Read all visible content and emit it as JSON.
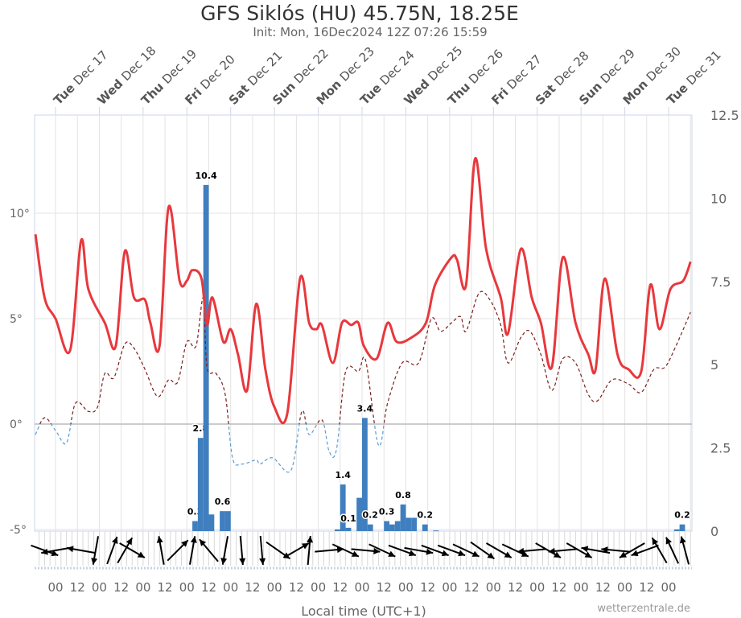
{
  "chart_data": {
    "type": "line",
    "title": "GFS Siklós (HU) 45.75N, 18.25E",
    "subtitle": "Init: Mon, 16Dec2024 12Z 07:26 15:59",
    "xlabel": "Local time (UTC+1)",
    "credit": "wetterzentrale.de",
    "year": 2024,
    "month": 12,
    "day_labels": [
      {
        "weekday": "Tue",
        "date": "Dec 17",
        "day": 17
      },
      {
        "weekday": "Wed",
        "date": "Dec 18",
        "day": 18
      },
      {
        "weekday": "Thu",
        "date": "Dec 19",
        "day": 19
      },
      {
        "weekday": "Fri",
        "date": "Dec 20",
        "day": 20
      },
      {
        "weekday": "Sat",
        "date": "Dec 21",
        "day": 21
      },
      {
        "weekday": "Sun",
        "date": "Dec 22",
        "day": 22
      },
      {
        "weekday": "Mon",
        "date": "Dec 23",
        "day": 23
      },
      {
        "weekday": "Tue",
        "date": "Dec 24",
        "day": 24
      },
      {
        "weekday": "Wed",
        "date": "Dec 25",
        "day": 25
      },
      {
        "weekday": "Thu",
        "date": "Dec 26",
        "day": 26
      },
      {
        "weekday": "Fri",
        "date": "Dec 27",
        "day": 27
      },
      {
        "weekday": "Sat",
        "date": "Dec 28",
        "day": 28
      },
      {
        "weekday": "Sun",
        "date": "Dec 29",
        "day": 29
      },
      {
        "weekday": "Mon",
        "date": "Dec 30",
        "day": 30
      },
      {
        "weekday": "Tue",
        "date": "Dec 31",
        "day": 31
      }
    ],
    "hour_tick_labels": [
      "00",
      "12"
    ],
    "left_axis": {
      "unit": "°",
      "ticks": [
        -5,
        0,
        5,
        10
      ],
      "tick_labels": [
        "-5°",
        "0°",
        "5°",
        "10°"
      ],
      "range": [
        -5,
        14.7
      ]
    },
    "right_axis": {
      "ticks": [
        0,
        2.5,
        5,
        7.5,
        10,
        12.5
      ],
      "tick_labels": [
        "0",
        "2.5",
        "5",
        "7.5",
        "10",
        "12.5"
      ],
      "range": [
        0,
        12.5
      ]
    },
    "x_range": [
      "16 13",
      "31 13"
    ],
    "colors": {
      "temperature": "#e8383d",
      "dewpoint_above_zero": "#7a1f1f",
      "dewpoint_below_zero": "#5b9bd5",
      "precipitation": "#3f7fbf",
      "wind": "#000000",
      "grid": "#e3e3e3",
      "zero_line": "#bbbbbb"
    },
    "temperature": [
      [
        "16 13",
        9.0
      ],
      [
        "16 18",
        6.0
      ],
      [
        "17 00",
        5.0
      ],
      [
        "17 08",
        3.5
      ],
      [
        "17 14",
        8.7
      ],
      [
        "17 18",
        6.4
      ],
      [
        "18 03",
        4.8
      ],
      [
        "18 09",
        3.7
      ],
      [
        "18 14",
        8.2
      ],
      [
        "18 19",
        6.0
      ],
      [
        "19 01",
        5.9
      ],
      [
        "19 04",
        4.8
      ],
      [
        "19 09",
        3.7
      ],
      [
        "19 14",
        10.3
      ],
      [
        "19 20",
        6.8
      ],
      [
        "20 00",
        6.8
      ],
      [
        "20 03",
        7.3
      ],
      [
        "20 08",
        6.9
      ],
      [
        "20 11",
        4.7
      ],
      [
        "20 14",
        6.0
      ],
      [
        "20 20",
        3.9
      ],
      [
        "21 00",
        4.5
      ],
      [
        "21 04",
        3.3
      ],
      [
        "21 09",
        1.6
      ],
      [
        "21 14",
        5.7
      ],
      [
        "21 19",
        2.6
      ],
      [
        "22 00",
        0.8
      ],
      [
        "22 07",
        0.5
      ],
      [
        "22 14",
        6.9
      ],
      [
        "22 19",
        4.8
      ],
      [
        "22 23",
        4.5
      ],
      [
        "23 02",
        4.7
      ],
      [
        "23 08",
        2.9
      ],
      [
        "23 13",
        4.8
      ],
      [
        "23 18",
        4.7
      ],
      [
        "23 22",
        4.8
      ],
      [
        "24 01",
        3.7
      ],
      [
        "24 08",
        3.1
      ],
      [
        "24 14",
        4.8
      ],
      [
        "24 19",
        3.9
      ],
      [
        "25 03",
        4.1
      ],
      [
        "25 11",
        4.8
      ],
      [
        "25 16",
        6.6
      ],
      [
        "26 01",
        7.9
      ],
      [
        "26 04",
        7.8
      ],
      [
        "26 09",
        6.6
      ],
      [
        "26 14",
        12.6
      ],
      [
        "26 20",
        8.3
      ],
      [
        "27 04",
        6.0
      ],
      [
        "27 08",
        4.3
      ],
      [
        "27 15",
        8.3
      ],
      [
        "27 21",
        6.0
      ],
      [
        "28 02",
        4.8
      ],
      [
        "28 08",
        2.7
      ],
      [
        "28 14",
        7.9
      ],
      [
        "28 21",
        4.8
      ],
      [
        "29 04",
        3.3
      ],
      [
        "29 08",
        2.6
      ],
      [
        "29 13",
        6.9
      ],
      [
        "29 20",
        3.3
      ],
      [
        "30 02",
        2.6
      ],
      [
        "30 09",
        2.5
      ],
      [
        "30 14",
        6.6
      ],
      [
        "30 19",
        4.5
      ],
      [
        "31 01",
        6.4
      ],
      [
        "31 08",
        6.8
      ],
      [
        "31 12",
        7.7
      ]
    ],
    "dewpoint": [
      [
        "16 13",
        -0.5
      ],
      [
        "16 18",
        0.3
      ],
      [
        "17 00",
        -0.3
      ],
      [
        "17 06",
        -0.9
      ],
      [
        "17 11",
        1.0
      ],
      [
        "17 18",
        0.6
      ],
      [
        "17 23",
        0.8
      ],
      [
        "18 03",
        2.4
      ],
      [
        "18 08",
        2.2
      ],
      [
        "18 14",
        3.8
      ],
      [
        "18 19",
        3.6
      ],
      [
        "19 01",
        2.6
      ],
      [
        "19 08",
        1.3
      ],
      [
        "19 14",
        2.1
      ],
      [
        "19 19",
        2.0
      ],
      [
        "20 00",
        3.9
      ],
      [
        "20 05",
        3.7
      ],
      [
        "20 09",
        6.0
      ],
      [
        "20 11",
        2.7
      ],
      [
        "20 16",
        2.4
      ],
      [
        "20 21",
        1.4
      ],
      [
        "21 01",
        -1.6
      ],
      [
        "21 06",
        -1.9
      ],
      [
        "21 14",
        -1.7
      ],
      [
        "21 16",
        -1.9
      ],
      [
        "21 23",
        -1.6
      ],
      [
        "22 09",
        -2.2
      ],
      [
        "22 15",
        0.6
      ],
      [
        "22 19",
        -0.5
      ],
      [
        "23 02",
        0.2
      ],
      [
        "23 06",
        -1.3
      ],
      [
        "23 10",
        -1.2
      ],
      [
        "23 15",
        2.5
      ],
      [
        "23 22",
        2.5
      ],
      [
        "24 02",
        3.0
      ],
      [
        "24 09",
        -1.0
      ],
      [
        "24 14",
        1.0
      ],
      [
        "24 22",
        2.9
      ],
      [
        "25 07",
        2.9
      ],
      [
        "25 14",
        5.0
      ],
      [
        "25 19",
        4.4
      ],
      [
        "26 01",
        4.8
      ],
      [
        "26 06",
        5.1
      ],
      [
        "26 09",
        4.4
      ],
      [
        "26 16",
        6.2
      ],
      [
        "26 22",
        5.9
      ],
      [
        "27 04",
        4.7
      ],
      [
        "27 08",
        2.9
      ],
      [
        "27 15",
        4.1
      ],
      [
        "27 20",
        4.4
      ],
      [
        "28 02",
        3.3
      ],
      [
        "28 08",
        1.6
      ],
      [
        "28 14",
        3.1
      ],
      [
        "28 21",
        2.9
      ],
      [
        "29 04",
        1.4
      ],
      [
        "29 09",
        1.1
      ],
      [
        "29 17",
        2.1
      ],
      [
        "30 02",
        1.9
      ],
      [
        "30 09",
        1.5
      ],
      [
        "30 16",
        2.6
      ],
      [
        "30 22",
        2.7
      ],
      [
        "31 04",
        3.7
      ],
      [
        "31 12",
        5.3
      ]
    ],
    "precipitation": [
      {
        "t": "20 03",
        "v": 0.3,
        "label": "0.3"
      },
      {
        "t": "20 06",
        "v": 2.8,
        "label": "2.8"
      },
      {
        "t": "20 09",
        "v": 10.4,
        "label": "10.4"
      },
      {
        "t": "20 12",
        "v": 0.5
      },
      {
        "t": "20 18",
        "v": 0.6,
        "label": "0.6"
      },
      {
        "t": "20 21",
        "v": 0.6
      },
      {
        "t": "23 09",
        "v": 0.05
      },
      {
        "t": "23 12",
        "v": 1.4,
        "label": "1.4"
      },
      {
        "t": "23 15",
        "v": 0.1,
        "label": "0.1"
      },
      {
        "t": "23 21",
        "v": 1.0
      },
      {
        "t": "24 00",
        "v": 3.4,
        "label": "3.4"
      },
      {
        "t": "24 03",
        "v": 0.2,
        "label": "0.2"
      },
      {
        "t": "24 12",
        "v": 0.3,
        "label": "0.3"
      },
      {
        "t": "24 15",
        "v": 0.2
      },
      {
        "t": "24 18",
        "v": 0.3
      },
      {
        "t": "24 21",
        "v": 0.8,
        "label": "0.8"
      },
      {
        "t": "25 00",
        "v": 0.4
      },
      {
        "t": "25 03",
        "v": 0.4
      },
      {
        "t": "25 09",
        "v": 0.2,
        "label": "0.2"
      },
      {
        "t": "25 15",
        "v": 0.02
      },
      {
        "t": "31 03",
        "v": 0.05
      },
      {
        "t": "31 06",
        "v": 0.2,
        "label": "0.2"
      }
    ],
    "wind_heading_deg": [
      [
        "16 18",
        110
      ],
      [
        "17 00",
        260
      ],
      [
        "17 14",
        280
      ],
      [
        "17 22",
        190
      ],
      [
        "18 07",
        20
      ],
      [
        "18 14",
        30
      ],
      [
        "18 18",
        120
      ],
      [
        "19 10",
        350
      ],
      [
        "19 19",
        45
      ],
      [
        "20 03",
        10
      ],
      [
        "20 12",
        320
      ],
      [
        "20 21",
        190
      ],
      [
        "21 06",
        175
      ],
      [
        "21 17",
        175
      ],
      [
        "22 02",
        125
      ],
      [
        "22 12",
        60
      ],
      [
        "22 19",
        5
      ],
      [
        "23 06",
        85
      ],
      [
        "23 15",
        115
      ],
      [
        "24 02",
        95
      ],
      [
        "24 11",
        115
      ],
      [
        "24 22",
        110
      ],
      [
        "25 07",
        100
      ],
      [
        "25 16",
        110
      ],
      [
        "26 01",
        110
      ],
      [
        "26 09",
        115
      ],
      [
        "26 18",
        125
      ],
      [
        "27 03",
        120
      ],
      [
        "27 12",
        115
      ],
      [
        "27 21",
        265
      ],
      [
        "28 06",
        120
      ],
      [
        "28 14",
        265
      ],
      [
        "28 23",
        120
      ],
      [
        "29 08",
        280
      ],
      [
        "29 19",
        275
      ],
      [
        "30 04",
        240
      ],
      [
        "30 11",
        250
      ],
      [
        "30 19",
        330
      ],
      [
        "31 02",
        335
      ],
      [
        "31 09",
        345
      ]
    ]
  }
}
